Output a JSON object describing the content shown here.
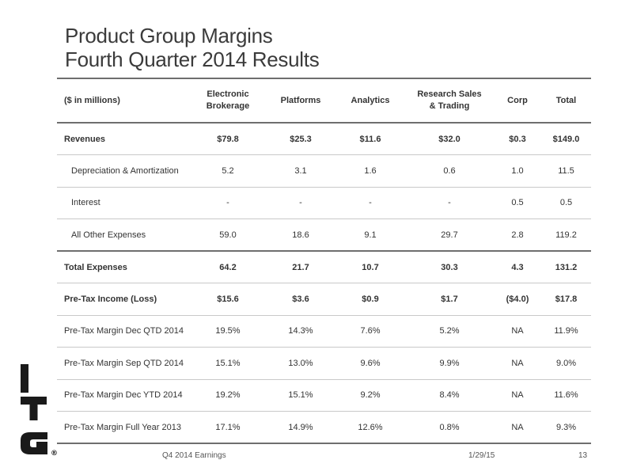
{
  "title": {
    "line1": "Product Group Margins",
    "line2": "Fourth Quarter 2014 Results"
  },
  "table": {
    "headers": [
      "($ in millions)",
      "Electronic\nBrokerage",
      "Platforms",
      "Analytics",
      "Research Sales\n& Trading",
      "Corp",
      "Total"
    ],
    "rows": [
      {
        "label": "Revenues",
        "values": [
          "$79.8",
          "$25.3",
          "$11.6",
          "$32.0",
          "$0.3",
          "$149.0"
        ],
        "bold": true,
        "indent": false,
        "heavy": false
      },
      {
        "label": "Depreciation & Amortization",
        "values": [
          "5.2",
          "3.1",
          "1.6",
          "0.6",
          "1.0",
          "11.5"
        ],
        "bold": false,
        "indent": true,
        "heavy": false
      },
      {
        "label": "Interest",
        "values": [
          "-",
          "-",
          "-",
          "-",
          "0.5",
          "0.5"
        ],
        "bold": false,
        "indent": true,
        "heavy": false
      },
      {
        "label": "All Other Expenses",
        "values": [
          "59.0",
          "18.6",
          "9.1",
          "29.7",
          "2.8",
          "119.2"
        ],
        "bold": false,
        "indent": true,
        "heavy": true
      },
      {
        "label": "Total Expenses",
        "values": [
          "64.2",
          "21.7",
          "10.7",
          "30.3",
          "4.3",
          "131.2"
        ],
        "bold": true,
        "indent": false,
        "heavy": false
      },
      {
        "label": "Pre-Tax Income (Loss)",
        "values": [
          "$15.6",
          "$3.6",
          "$0.9",
          "$1.7",
          "($4.0)",
          "$17.8"
        ],
        "bold": true,
        "indent": false,
        "heavy": false
      },
      {
        "label": "Pre-Tax Margin Dec QTD 2014",
        "values": [
          "19.5%",
          "14.3%",
          "7.6%",
          "5.2%",
          "NA",
          "11.9%"
        ],
        "bold": false,
        "indent": false,
        "heavy": false
      },
      {
        "label": "Pre-Tax Margin Sep QTD 2014",
        "values": [
          "15.1%",
          "13.0%",
          "9.6%",
          "9.9%",
          "NA",
          "9.0%"
        ],
        "bold": false,
        "indent": false,
        "heavy": false
      },
      {
        "label": "Pre-Tax Margin Dec YTD 2014",
        "values": [
          "19.2%",
          "15.1%",
          "9.2%",
          "8.4%",
          "NA",
          "11.6%"
        ],
        "bold": false,
        "indent": false,
        "heavy": false
      },
      {
        "label": "Pre-Tax Margin Full Year 2013",
        "values": [
          "17.1%",
          "14.9%",
          "12.6%",
          "0.8%",
          "NA",
          "9.3%"
        ],
        "bold": false,
        "indent": false,
        "heavy": false
      }
    ]
  },
  "logo": {
    "mark": "ITG",
    "registered": "®",
    "color": "#1a1a1a"
  },
  "footer": {
    "left": "Q4 2014 Earnings",
    "date": "1/29/15",
    "page": "13"
  },
  "colors": {
    "title": "#3b3b3b",
    "text": "#333333",
    "rule_dark": "#6e6e6e",
    "rule_light": "#c9c9c9"
  }
}
